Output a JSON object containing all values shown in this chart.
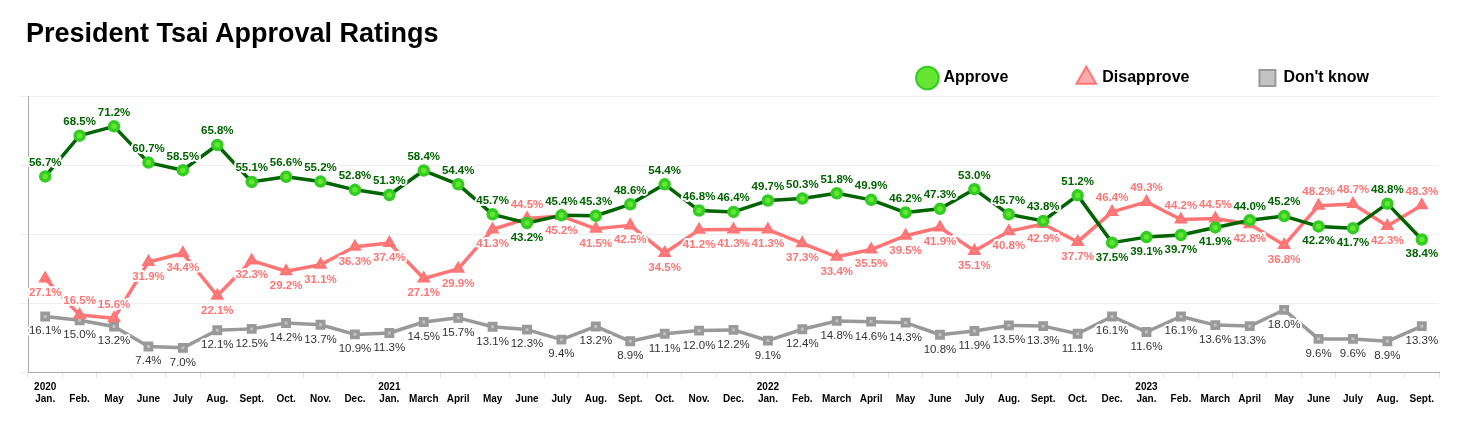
{
  "chart_data": {
    "type": "line",
    "title": "President Tsai Approval Ratings",
    "categories": [
      "2020\nJan.",
      "Feb.",
      "May",
      "June",
      "July",
      "Aug.",
      "Sept.",
      "Oct.",
      "Nov.",
      "Dec.",
      "2021\nJan.",
      "March",
      "April",
      "May",
      "June",
      "July",
      "Aug.",
      "Sept.",
      "Oct.",
      "Nov.",
      "Dec.",
      "2022\nJan.",
      "Feb.",
      "March",
      "April",
      "May",
      "June",
      "July",
      "Aug.",
      "Sept.",
      "Oct.",
      "Dec.",
      "2023\nJan.",
      "Feb.",
      "March",
      "April",
      "May",
      "June",
      "July",
      "Aug.",
      "Sept."
    ],
    "ylim": [
      0,
      80
    ],
    "yticks": [
      {
        "value": 0,
        "label": null
      },
      {
        "value": 20,
        "label": null
      },
      {
        "value": 40,
        "label": null
      },
      {
        "value": 60,
        "label": null
      },
      {
        "value": 80,
        "label": null
      }
    ],
    "tick_labels": "x",
    "grid": "y",
    "legend": "top right",
    "line_style": "solid",
    "series": [
      {
        "name": "Approve",
        "color": "#006400",
        "marker": "circle",
        "values": [
          56.7,
          68.5,
          71.2,
          60.7,
          58.5,
          65.8,
          55.1,
          56.6,
          55.2,
          52.8,
          51.3,
          58.4,
          54.4,
          45.7,
          43.2,
          45.4,
          45.3,
          48.6,
          54.4,
          46.8,
          46.4,
          49.7,
          50.3,
          51.8,
          49.9,
          46.2,
          47.3,
          53.0,
          45.7,
          43.8,
          51.2,
          37.5,
          39.1,
          39.7,
          41.9,
          44.0,
          45.2,
          42.2,
          41.7,
          48.8,
          38.4
        ],
        "value_labels": [
          "56.7%",
          "68.5%",
          "71.2%",
          "60.7%",
          "58.5%",
          "65.8%",
          "55.1%",
          "56.6%",
          "55.2%",
          "52.8%",
          "51.3%",
          "58.4%",
          "54.4%",
          "45.7%",
          "43.2%",
          "45.4%",
          "45.3%",
          "48.6%",
          "54.4%",
          "46.8%",
          "46.4%",
          "49.7%",
          "50.3%",
          "51.8%",
          "49.9%",
          "46.2%",
          "47.3%",
          "53.0%",
          "45.7%",
          "43.8%",
          "51.2%",
          "37.5%",
          "39.1%",
          "39.7%",
          "41.9%",
          "44.0%",
          "45.2%",
          "42.2%",
          "41.7%",
          "48.8%",
          "38.4%"
        ]
      },
      {
        "name": "Disapprove",
        "color": "#ff7575",
        "marker": "triangle",
        "values": [
          27.1,
          16.5,
          15.6,
          31.9,
          34.4,
          22.1,
          32.3,
          29.2,
          31.1,
          36.3,
          37.4,
          27.1,
          29.9,
          41.3,
          44.5,
          45.2,
          41.5,
          42.5,
          34.5,
          41.2,
          41.3,
          41.3,
          37.3,
          33.4,
          35.5,
          39.5,
          41.9,
          35.1,
          40.8,
          42.9,
          37.7,
          46.4,
          49.3,
          44.2,
          44.5,
          42.8,
          36.8,
          48.2,
          48.7,
          42.3,
          48.3
        ],
        "value_labels": [
          "27.1%",
          "16.5%",
          "15.6%",
          "31.9%",
          "34.4%",
          "22.1%",
          "32.3%",
          "29.2%",
          "31.1%",
          "36.3%",
          "37.4%",
          "27.1%",
          "29.9%",
          "41.3%",
          "44.5%",
          "45.2%",
          "41.5%",
          "42.5%",
          "34.5%",
          "41.2%",
          "41.3%",
          "41.3%",
          "37.3%",
          "33.4%",
          "35.5%",
          "39.5%",
          "41.9%",
          "35.1%",
          "40.8%",
          "42.9%",
          "37.7%",
          "46.4%",
          "49.3%",
          "44.2%",
          "44.5%",
          "42.8%",
          "36.8%",
          "48.2%",
          "48.7%",
          "42.3%",
          "48.3%"
        ]
      },
      {
        "name": "Don't know",
        "color": "#999999",
        "marker": "square",
        "values": [
          16.1,
          15.0,
          13.2,
          7.4,
          7.0,
          12.1,
          12.5,
          14.2,
          13.7,
          10.9,
          11.3,
          14.5,
          15.7,
          13.1,
          12.3,
          9.4,
          13.2,
          8.9,
          11.1,
          12.0,
          12.2,
          9.1,
          12.4,
          14.8,
          14.6,
          14.3,
          10.8,
          11.9,
          13.5,
          13.3,
          11.1,
          16.1,
          11.6,
          16.1,
          13.6,
          13.3,
          18.0,
          9.6,
          9.6,
          8.9,
          13.3
        ],
        "value_labels": [
          "16.1%",
          "15.0%",
          "13.2%",
          "7.4%",
          "7.0%",
          "12.1%",
          "12.5%",
          "14.2%",
          "13.7%",
          "10.9%",
          "11.3%",
          "14.5%",
          "15.7%",
          "13.1%",
          "12.3%",
          "9.4%",
          "13.2%",
          "8.9%",
          "11.1%",
          "12.0%",
          "12.2%",
          "9.1%",
          "12.4%",
          "14.8%",
          "14.6%",
          "14.3%",
          "10.8%",
          "11.9%",
          "13.5%",
          "13.3%",
          "11.1%",
          "16.1%",
          "11.6%",
          "16.1%",
          "13.6%",
          "13.3%",
          "18.0%",
          "9.6%",
          "9.6%",
          "8.9%",
          "13.3%"
        ]
      }
    ]
  }
}
